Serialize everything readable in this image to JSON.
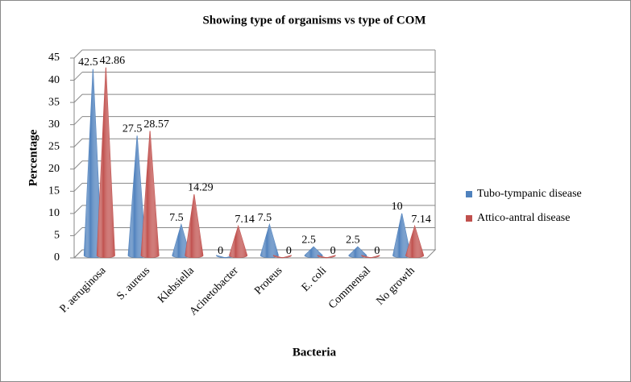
{
  "chart_data": {
    "type": "bar",
    "title": "Showing type of organisms vs type of COM",
    "x_label": "Bacteria",
    "y_label": "Percentage",
    "categories": [
      "P. aeruginosa",
      "S. aureus",
      "Klebsiella",
      "Acinetobacter",
      "Proteus",
      "E. coli",
      "Commensal",
      "No growth"
    ],
    "series": [
      {
        "name": "Tubo-tympanic disease",
        "color": "#4f81bd",
        "values": [
          42.5,
          27.5,
          7.5,
          0,
          7.5,
          2.5,
          2.5,
          10
        ]
      },
      {
        "name": "Attico-antral disease",
        "color": "#c0504d",
        "values": [
          42.86,
          28.57,
          14.29,
          7.14,
          0,
          0,
          0,
          7.14
        ]
      }
    ],
    "ylim": [
      0,
      45
    ],
    "yticks": [
      0,
      5,
      10,
      15,
      20,
      25,
      30,
      35,
      40,
      45
    ],
    "grid": true,
    "legend": "right"
  }
}
